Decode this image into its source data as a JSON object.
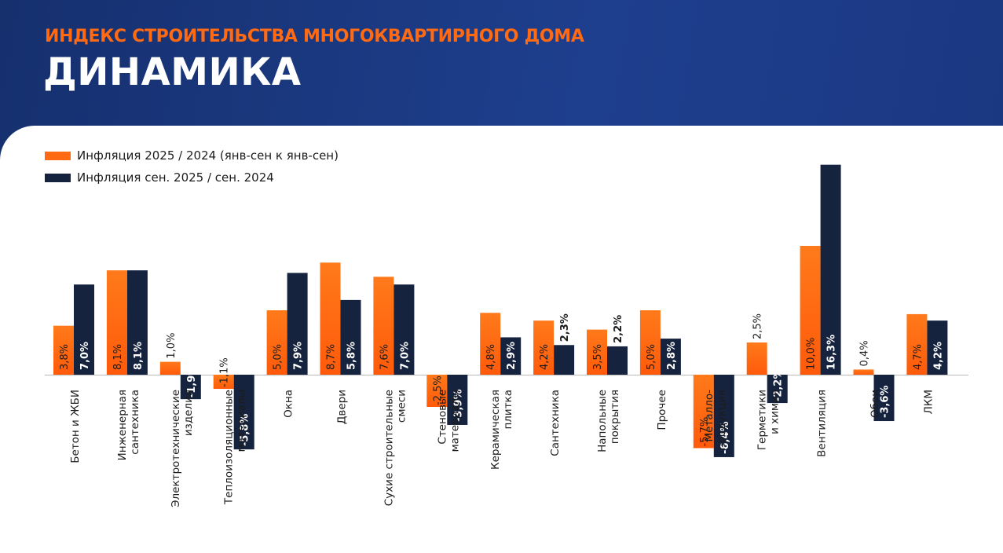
{
  "header": {
    "supertitle": "ИНДЕКС СТРОИТЕЛЬСТВА МНОГОКВАРТИРНОГО ДОМА",
    "title": "ДИНАМИКА"
  },
  "colors": {
    "series_1": "#ff6a13",
    "series_2": "#16233f",
    "background": "#1d3a86"
  },
  "chart_data": {
    "type": "bar",
    "title": "",
    "xlabel": "",
    "ylabel": "",
    "grid": false,
    "legend_position": "top-left",
    "categories": [
      [
        "Бетон и ЖБИ"
      ],
      [
        "Инженерная",
        "сантехника"
      ],
      [
        "Электротехнические",
        "изделия"
      ],
      [
        "Теплоизоляционные",
        "материалы"
      ],
      [
        "Окна"
      ],
      [
        "Двери"
      ],
      [
        "Сухие строительные",
        "смеси"
      ],
      [
        "Стеновые",
        "материалы"
      ],
      [
        "Керамическая",
        "плитка"
      ],
      [
        "Сантехника"
      ],
      [
        "Напольные",
        "покрытия"
      ],
      [
        "Прочее"
      ],
      [
        "Металло-",
        "продукция"
      ],
      [
        "Герметики",
        "и химия"
      ],
      [
        "Вентиляция"
      ],
      [
        "Обои"
      ],
      [
        "ЛКМ"
      ]
    ],
    "series": [
      {
        "name": "Инфляция 2025 / 2024 (янв-сен к янв-сен)",
        "values": [
          3.8,
          8.1,
          1.0,
          -1.1,
          5.0,
          8.7,
          7.6,
          -2.5,
          4.8,
          4.2,
          3.5,
          5.0,
          -5.7,
          2.5,
          10.0,
          0.4,
          4.7
        ],
        "labels": [
          "3,8%",
          "8,1%",
          "1,0%",
          "-1,1%",
          "5,0%",
          "8,7%",
          "7,6%",
          "-2,5%",
          "4,8%",
          "4,2%",
          "3,5%",
          "5,0%",
          "-5,7%",
          "2,5%",
          "10,0%",
          "0,4%",
          "4,7%"
        ]
      },
      {
        "name": "Инфляция сен. 2025 / сен. 2024",
        "values": [
          7.0,
          8.1,
          -1.9,
          -5.8,
          7.9,
          5.8,
          7.0,
          -3.9,
          2.9,
          2.3,
          2.2,
          2.8,
          -6.4,
          -2.2,
          16.3,
          -3.6,
          4.2
        ],
        "labels": [
          "7,0%",
          "8,1%",
          "-1,9%",
          "-5,8%",
          "7,9%",
          "5,8%",
          "7,0%",
          "-3,9%",
          "2,9%",
          "2,3%",
          "2,2%",
          "2,8%",
          "-6,4%",
          "-2,2%",
          "16,3%",
          "-3,6%",
          "4,2%"
        ]
      }
    ]
  }
}
